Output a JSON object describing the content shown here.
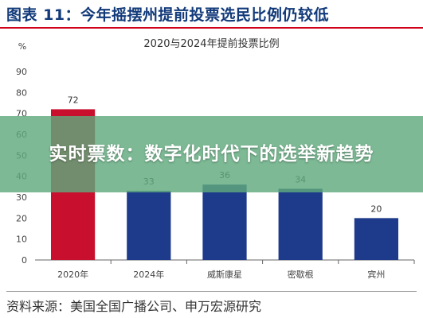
{
  "header": {
    "figure_title": "图表 11：今年摇摆州提前投票选民比例仍较低"
  },
  "chart_data": {
    "type": "bar",
    "title": "2020与2024年提前投票比例",
    "ylabel": "%",
    "xlabel": "",
    "categories": [
      "2020年",
      "2024年",
      "威斯康星",
      "密歇根",
      "宾州"
    ],
    "values": [
      72,
      33,
      36,
      34,
      20
    ],
    "data_labels": [
      "72",
      "33",
      "36",
      "34",
      "20"
    ],
    "colors": [
      "#c8102e",
      "#1e3a8a",
      "#1e3a8a",
      "#1e3a8a",
      "#1e3a8a"
    ],
    "ylim": [
      0,
      90
    ],
    "yticks": [
      "0",
      "10",
      "20",
      "30",
      "40",
      "50",
      "60",
      "70",
      "80",
      "90"
    ],
    "grid": false
  },
  "overlay": {
    "banner_text": "实时票数：数字化时代下的选举新趋势",
    "color": "#5faa7d"
  },
  "source": {
    "text": "资料来源：美国全国广播公司、申万宏源研究"
  }
}
